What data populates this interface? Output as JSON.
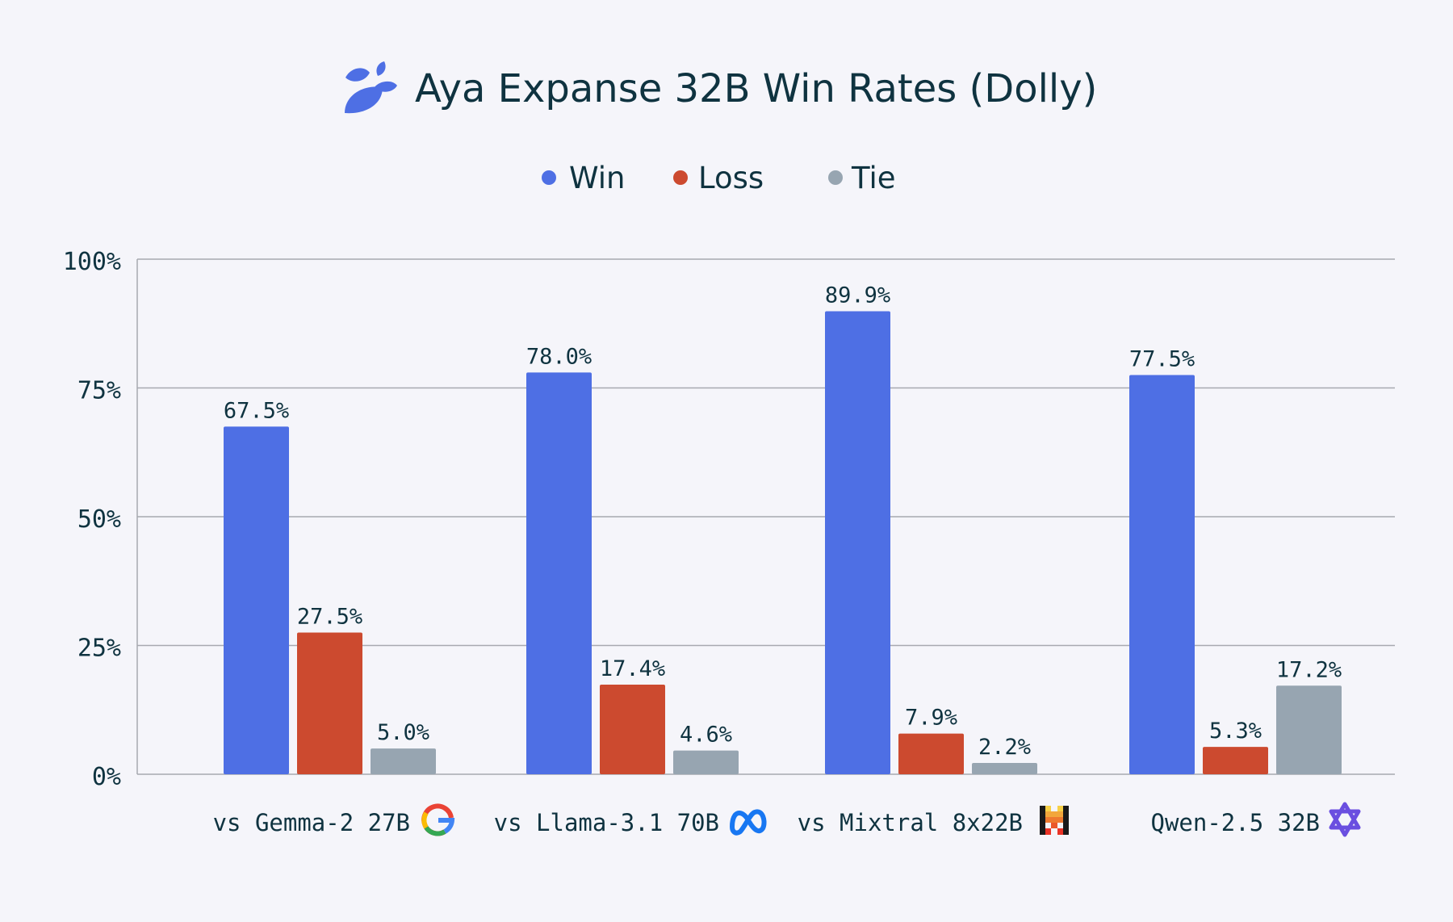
{
  "chart_data": {
    "type": "bar",
    "title": "Aya Expanse 32B Win Rates (Dolly)",
    "categories": [
      "vs Gemma-2 27B",
      "vs Llama-3.1 70B",
      "vs Mixtral 8x22B",
      "Qwen-2.5 32B"
    ],
    "category_icons": [
      "google-icon",
      "meta-icon",
      "mistral-icon",
      "qwen-icon"
    ],
    "series": [
      {
        "name": "Win",
        "color": "#4e6fe4",
        "values": [
          67.5,
          78.0,
          89.9,
          77.5
        ],
        "labels": [
          "67.5%",
          "78.0%",
          "89.9%",
          "77.5%"
        ]
      },
      {
        "name": "Loss",
        "color": "#cc4a2f",
        "values": [
          27.5,
          17.4,
          7.9,
          5.3
        ],
        "labels": [
          "27.5%",
          "17.4%",
          "7.9%",
          "5.3%"
        ]
      },
      {
        "name": "Tie",
        "color": "#97a5b1",
        "values": [
          5.0,
          4.6,
          2.2,
          17.2
        ],
        "labels": [
          "5.0%",
          "4.6%",
          "2.2%",
          "17.2%"
        ]
      }
    ],
    "ylim": [
      0,
      100
    ],
    "yticks": [
      0,
      25,
      50,
      75,
      100
    ],
    "ytick_labels": [
      "0%",
      "25%",
      "50%",
      "75%",
      "100%"
    ],
    "xlabel": "",
    "ylabel": "",
    "grid": true,
    "legend_position": "top-center"
  },
  "colors": {
    "background": "#f5f5fa",
    "text": "#0f3340",
    "grid": "#a7a9b0",
    "logo": "#4e6fe4"
  }
}
